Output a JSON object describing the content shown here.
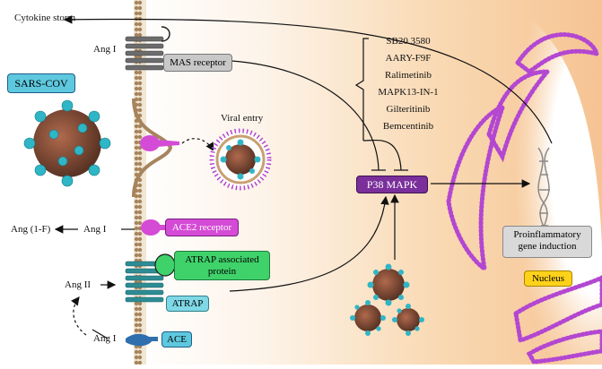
{
  "labels": {
    "cytokine_storm": "Cytokine storm",
    "ang_i_top": "Ang I",
    "mas_receptor": "MAS receptor",
    "sars_cov": "SARS-COV",
    "viral_entry": "Viral entry",
    "ang_1f": "Ang (1-F)",
    "ang_i_ace2": "Ang I",
    "ace2_receptor": "ACE2 receptor",
    "atrap_associated": "ATRAP associated protein",
    "ang_ii": "Ang II",
    "atrap": "ATRAP",
    "ang_i_bottom": "Ang I",
    "ace": "ACE",
    "p38_mapk": "P38 MAPK",
    "proinflammatory": "Proinflammatory gene induction",
    "nucleus": "Nucleus"
  },
  "inhibitors": [
    "SB20 3580",
    "AARY-F9F",
    "Ralimetinib",
    "MAPK13-IN-1",
    "Gilteritinib",
    "Bemcentinib"
  ],
  "colors": {
    "membrane": "#9b7a52",
    "mas_box": "#c8c8c8",
    "sars_box": "#5ec8de",
    "ace2_box": "#d44bd6",
    "atrap_assoc_box": "#3fd26a",
    "atrap_box": "#7fd8e6",
    "ace_box": "#5ec8de",
    "p38_box": "#7a2f9b",
    "nucleus_box": "#ffd21a",
    "pro_box": "#d9d9d9",
    "er_membrane": "#b347d1",
    "virus_spike": "#2fb6c6",
    "virus_core": "#7a4a3a"
  }
}
